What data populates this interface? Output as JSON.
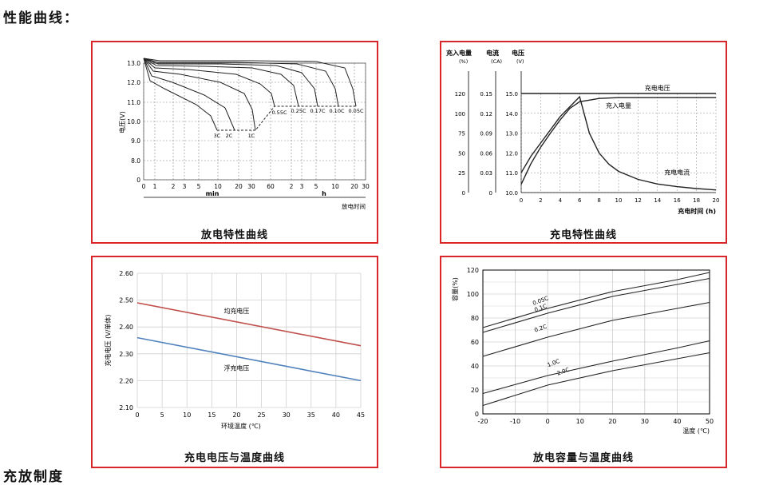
{
  "page_title": "性能曲线：",
  "next_section_title": "充放制度",
  "colors": {
    "border": "#d9262b",
    "equalize": "#c0504d",
    "float": "#4f81bd",
    "grid": "#888888",
    "curve": "#222222"
  },
  "chart_data": [
    {
      "id": "discharge",
      "type": "line",
      "title": "放电特性曲线",
      "ylabel": "电压(V)",
      "xlabel": "放电时间",
      "x_unit_min": "min",
      "x_unit_h": "h",
      "yticks": [
        "0",
        "8.0",
        "9.0",
        "10.0",
        "11.0",
        "12.0",
        "13.0"
      ],
      "xticks": [
        "0",
        "1",
        "2",
        "3",
        "5",
        "10",
        "20",
        "30",
        "60",
        "2",
        "3",
        "5",
        "10",
        "20",
        "30"
      ],
      "rate_labels": [
        "3C",
        "2C",
        "1C",
        "0.55C",
        "0.25C",
        "0.17C",
        "0.10C",
        "0.05C"
      ]
    },
    {
      "id": "charge",
      "type": "line",
      "title": "充电特性曲线",
      "ylabel_charge": "充入电量",
      "ylabel_current": "电流",
      "ylabel_voltage": "电压",
      "unit_charge": "(%)",
      "unit_current": "(CA)",
      "unit_voltage": "(V)",
      "charge_ticks": [
        "0",
        "25",
        "50",
        "75",
        "100",
        "120"
      ],
      "current_ticks": [
        "0",
        "0.03",
        "0.06",
        "0.09",
        "0.12",
        "0.15"
      ],
      "voltage_ticks": [
        "10.0",
        "11.0",
        "12.0",
        "13.0",
        "14.0",
        "15.0"
      ],
      "x": [
        0,
        2,
        4,
        6,
        8,
        10,
        12,
        14,
        16,
        18,
        20
      ],
      "xlabel": "充电时间 (h)",
      "series": [
        {
          "name": "充电电压",
          "x": [
            0,
            6,
            20
          ],
          "y": [
            15.0,
            15.0,
            15.0
          ]
        },
        {
          "name": "充入电量",
          "x": [
            0,
            1,
            2,
            3,
            4,
            5,
            6,
            7,
            8,
            10,
            14,
            20
          ],
          "y": [
            10,
            35,
            55,
            72,
            88,
            102,
            110,
            112,
            114,
            115,
            115,
            115
          ]
        },
        {
          "name": "充电电流",
          "x": [
            0,
            1,
            2,
            3,
            4,
            5,
            6,
            7,
            8,
            9,
            10,
            12,
            14,
            16,
            18,
            20
          ],
          "y": [
            0.03,
            0.055,
            0.075,
            0.095,
            0.115,
            0.13,
            0.145,
            0.09,
            0.06,
            0.043,
            0.032,
            0.02,
            0.013,
            0.009,
            0.006,
            0.004
          ]
        }
      ]
    },
    {
      "id": "voltage-temp",
      "type": "line",
      "title": "充电电压与温度曲线",
      "ylabel": "充电电压 (V/单体)",
      "xlabel": "环境温度 (℃)",
      "ylim": [
        2.1,
        2.6
      ],
      "xlim": [
        0,
        45
      ],
      "yticks": [
        "2.10",
        "2.20",
        "2.30",
        "2.40",
        "2.50",
        "2.60"
      ],
      "xticks": [
        "0",
        "5",
        "10",
        "15",
        "20",
        "25",
        "30",
        "35",
        "40",
        "45"
      ],
      "series": [
        {
          "name": "均充电压",
          "x": [
            0,
            45
          ],
          "y": [
            2.49,
            2.33
          ]
        },
        {
          "name": "浮充电压",
          "x": [
            0,
            45
          ],
          "y": [
            2.36,
            2.2
          ]
        }
      ]
    },
    {
      "id": "capacity-temp",
      "type": "line",
      "title": "放电容量与温度曲线",
      "ylabel": "容量(%)",
      "xlabel": "温度 (℃)",
      "ylim": [
        0,
        120
      ],
      "xlim": [
        -20,
        50
      ],
      "yticks": [
        "0",
        "20",
        "40",
        "60",
        "80",
        "100",
        "120"
      ],
      "xticks": [
        "-20",
        "-10",
        "0",
        "10",
        "20",
        "30",
        "40",
        "50"
      ],
      "series": [
        {
          "name": "0.05C",
          "x": [
            -20,
            0,
            20,
            40,
            50
          ],
          "y": [
            72,
            88,
            102,
            112,
            118
          ]
        },
        {
          "name": "0.1C",
          "x": [
            -20,
            0,
            20,
            40,
            50
          ],
          "y": [
            68,
            84,
            98,
            108,
            113
          ]
        },
        {
          "name": "0.2C",
          "x": [
            -20,
            0,
            20,
            40,
            50
          ],
          "y": [
            48,
            64,
            78,
            88,
            93
          ]
        },
        {
          "name": "1.0C",
          "x": [
            -20,
            0,
            20,
            40,
            50
          ],
          "y": [
            17,
            32,
            44,
            55,
            61
          ]
        },
        {
          "name": "2.0C",
          "x": [
            -20,
            0,
            20,
            40,
            50
          ],
          "y": [
            7,
            24,
            36,
            46,
            51
          ]
        }
      ]
    }
  ]
}
